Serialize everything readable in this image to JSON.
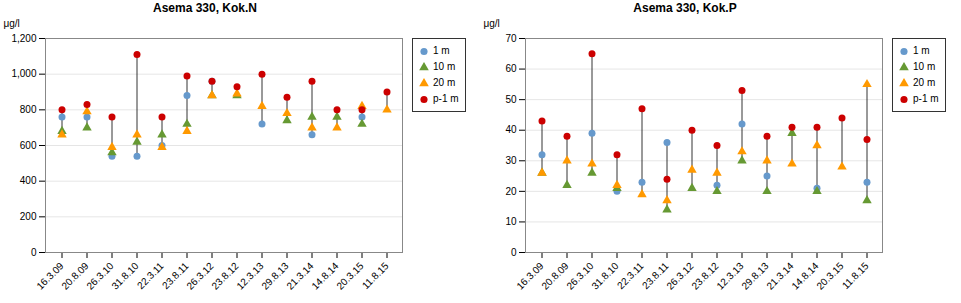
{
  "chart_data": [
    {
      "type": "scatter",
      "title": "Asema 330, Kok.N",
      "ylabel": "μg/l",
      "categories": [
        "16.3.09",
        "20.8.09",
        "26.3.10",
        "31.8.10",
        "22.3.11",
        "23.8.11",
        "26.3.12",
        "23.8.12",
        "12.3.13",
        "29.8.13",
        "21.3.14",
        "14.8.14",
        "20.3.15",
        "11.8.15"
      ],
      "series": [
        {
          "name": "1 m",
          "color": "#6699CC",
          "marker": "circle",
          "values": [
            760,
            760,
            540,
            540,
            600,
            880,
            960,
            null,
            720,
            null,
            660,
            null,
            760,
            null
          ]
        },
        {
          "name": "10 m",
          "color": "#669933",
          "marker": "triangle",
          "values": [
            680,
            700,
            560,
            620,
            660,
            720,
            880,
            880,
            null,
            740,
            760,
            760,
            720,
            null
          ]
        },
        {
          "name": "20 m",
          "color": "#FF9900",
          "marker": "triangle",
          "values": [
            660,
            790,
            590,
            660,
            590,
            680,
            880,
            890,
            820,
            780,
            700,
            700,
            820,
            800
          ]
        },
        {
          "name": "p-1 m",
          "color": "#CC0000",
          "marker": "circle",
          "values": [
            800,
            830,
            760,
            1110,
            760,
            990,
            960,
            930,
            1000,
            870,
            960,
            800,
            800,
            900
          ]
        }
      ],
      "ylim": [
        0,
        1200
      ],
      "yticks": [
        0,
        200,
        400,
        600,
        800,
        1000,
        1200
      ],
      "grid": true,
      "legend": "upper right"
    },
    {
      "type": "scatter",
      "title": "Asema 330, Kok.P",
      "ylabel": "μg/l",
      "categories": [
        "16.3.09",
        "20.8.09",
        "26.3.10",
        "31.8.10",
        "22.3.11",
        "23.8.11",
        "26.3.12",
        "23.8.12",
        "12.3.13",
        "29.8.13",
        "21.3.14",
        "14.8.14",
        "20.3.15",
        "11.8.15"
      ],
      "series": [
        {
          "name": "1 m",
          "color": "#6699CC",
          "marker": "circle",
          "values": [
            32,
            null,
            39,
            20,
            23,
            36,
            null,
            22,
            42,
            25,
            null,
            21,
            null,
            23
          ]
        },
        {
          "name": "10 m",
          "color": "#669933",
          "marker": "triangle",
          "values": [
            26,
            22,
            26,
            21,
            null,
            14,
            21,
            20,
            30,
            20,
            39,
            20,
            null,
            17
          ]
        },
        {
          "name": "20 m",
          "color": "#FF9900",
          "marker": "triangle",
          "values": [
            26,
            30,
            29,
            22,
            19,
            17,
            27,
            26,
            33,
            30,
            29,
            35,
            28,
            55
          ]
        },
        {
          "name": "p-1 m",
          "color": "#CC0000",
          "marker": "circle",
          "values": [
            43,
            38,
            65,
            32,
            47,
            24,
            40,
            35,
            53,
            38,
            41,
            41,
            44,
            37
          ]
        }
      ],
      "ylim": [
        0,
        70
      ],
      "yticks": [
        0,
        10,
        20,
        30,
        40,
        50,
        60,
        70
      ],
      "grid": true,
      "legend": "upper right"
    }
  ]
}
